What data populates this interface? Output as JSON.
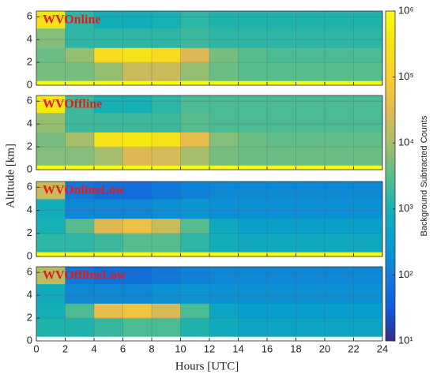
{
  "chart_data": [
    {
      "type": "heatmap",
      "title": "WVOnline",
      "show_xtick_labels": false,
      "x_edges": [
        0,
        2,
        4,
        6,
        8,
        10,
        12,
        14,
        16,
        18,
        20,
        22,
        24
      ],
      "y_edges": [
        0,
        0.4,
        2,
        3.3,
        5,
        6.5
      ],
      "values": [
        [
          1000000,
          1000000,
          1000000,
          1000000,
          1000000,
          1000000,
          1000000,
          1000000,
          1000000,
          1000000,
          1000000,
          1000000
        ],
        [
          5000,
          5000,
          8000,
          20000,
          20000,
          8000,
          4000,
          3000,
          3000,
          3000,
          3000,
          3000
        ],
        [
          4000,
          8000,
          200000,
          300000,
          200000,
          30000,
          5000,
          3000,
          2500,
          2500,
          2500,
          2500
        ],
        [
          6000,
          1500,
          1500,
          1500,
          1500,
          2000,
          1500,
          1500,
          1500,
          1500,
          1500,
          1500
        ],
        [
          300000,
          1500,
          800,
          800,
          1000,
          1500,
          1200,
          1200,
          1200,
          1200,
          1200,
          1200
        ]
      ],
      "xlim": [
        0,
        24
      ],
      "xticks": [
        0,
        2,
        4,
        6,
        8,
        10,
        12,
        14,
        16,
        18,
        20,
        22,
        24
      ],
      "ylim": [
        0,
        6.5
      ],
      "yticks": [
        0,
        2,
        4,
        6
      ],
      "grid": true
    },
    {
      "type": "heatmap",
      "title": "WVOffline",
      "show_xtick_labels": false,
      "x_edges": [
        0,
        2,
        4,
        6,
        8,
        10,
        12,
        14,
        16,
        18,
        20,
        22,
        24
      ],
      "y_edges": [
        0,
        0.4,
        2,
        3.3,
        5,
        6.5
      ],
      "values": [
        [
          1000000,
          1000000,
          1000000,
          1000000,
          1000000,
          1000000,
          1000000,
          1000000,
          1000000,
          1000000,
          1000000,
          1000000
        ],
        [
          6000,
          6000,
          10000,
          30000,
          25000,
          10000,
          5000,
          4000,
          4000,
          4000,
          4000,
          4000
        ],
        [
          5000,
          10000,
          300000,
          400000,
          300000,
          40000,
          6000,
          4000,
          3500,
          3500,
          3500,
          3500
        ],
        [
          8000,
          2000,
          2000,
          2000,
          2000,
          3000,
          2500,
          2500,
          2500,
          2500,
          2500,
          2500
        ],
        [
          400000,
          2000,
          1000,
          1000,
          1500,
          2500,
          2500,
          2500,
          2500,
          2500,
          2500,
          2500
        ]
      ],
      "xlim": [
        0,
        24
      ],
      "xticks": [
        0,
        2,
        4,
        6,
        8,
        10,
        12,
        14,
        16,
        18,
        20,
        22,
        24
      ],
      "ylim": [
        0,
        6.5
      ],
      "yticks": [
        0,
        2,
        4,
        6
      ],
      "grid": true
    },
    {
      "type": "heatmap",
      "title": "WVOnlineLow",
      "show_xtick_labels": false,
      "x_edges": [
        0,
        2,
        4,
        6,
        8,
        10,
        12,
        14,
        16,
        18,
        20,
        22,
        24
      ],
      "y_edges": [
        0,
        0.4,
        2,
        3.3,
        5,
        6.5
      ],
      "values": [
        [
          1000000,
          1000000,
          1000000,
          1000000,
          1000000,
          1000000,
          1000000,
          1000000,
          1000000,
          1000000,
          1000000,
          1000000
        ],
        [
          1500,
          1500,
          2000,
          3000,
          3000,
          1500,
          800,
          600,
          600,
          600,
          600,
          600
        ],
        [
          1000,
          3000,
          30000,
          50000,
          20000,
          3000,
          600,
          400,
          400,
          400,
          400,
          400
        ],
        [
          800,
          150,
          150,
          150,
          200,
          250,
          200,
          200,
          200,
          200,
          200,
          200
        ],
        [
          20000,
          80,
          60,
          60,
          80,
          120,
          150,
          150,
          150,
          150,
          150,
          150
        ]
      ],
      "xlim": [
        0,
        24
      ],
      "xticks": [
        0,
        2,
        4,
        6,
        8,
        10,
        12,
        14,
        16,
        18,
        20,
        22,
        24
      ],
      "ylim": [
        0,
        6.5
      ],
      "yticks": [
        0,
        2,
        4,
        6
      ],
      "grid": true
    },
    {
      "type": "heatmap",
      "title": "WVOfflineLow",
      "show_xtick_labels": true,
      "x_edges": [
        0,
        2,
        4,
        6,
        8,
        10,
        12,
        14,
        16,
        18,
        20,
        22,
        24
      ],
      "y_edges": [
        0,
        0.4,
        2,
        3.3,
        5,
        6.5
      ],
      "values": [
        [
          null,
          null,
          null,
          null,
          null,
          null,
          null,
          null,
          null,
          null,
          null,
          null
        ],
        [
          1200,
          1200,
          1800,
          2500,
          2500,
          1200,
          700,
          500,
          500,
          500,
          500,
          500
        ],
        [
          900,
          2500,
          40000,
          60000,
          25000,
          2500,
          500,
          350,
          350,
          350,
          350,
          350
        ],
        [
          700,
          150,
          150,
          150,
          200,
          250,
          200,
          200,
          200,
          200,
          200,
          200
        ],
        [
          15000,
          80,
          60,
          60,
          80,
          120,
          150,
          150,
          150,
          150,
          150,
          150
        ]
      ],
      "xlim": [
        0,
        24
      ],
      "xticks": [
        0,
        2,
        4,
        6,
        8,
        10,
        12,
        14,
        16,
        18,
        20,
        22,
        24
      ],
      "ylim": [
        0,
        6.5
      ],
      "yticks": [
        0,
        2,
        4,
        6
      ],
      "grid": true
    }
  ],
  "xlabel": "Hours [UTC]",
  "ylabel": "Altitude [km]",
  "colorbar": {
    "label": "Background Subtracted Counts",
    "log": true,
    "lim": [
      10,
      1000000
    ],
    "ticks": [
      {
        "value": 10,
        "label": "10¹"
      },
      {
        "value": 100,
        "label": "10²"
      },
      {
        "value": 1000,
        "label": "10³"
      },
      {
        "value": 10000,
        "label": "10⁴"
      },
      {
        "value": 100000,
        "label": "10⁵"
      },
      {
        "value": 1000000,
        "label": "10⁶"
      }
    ]
  }
}
